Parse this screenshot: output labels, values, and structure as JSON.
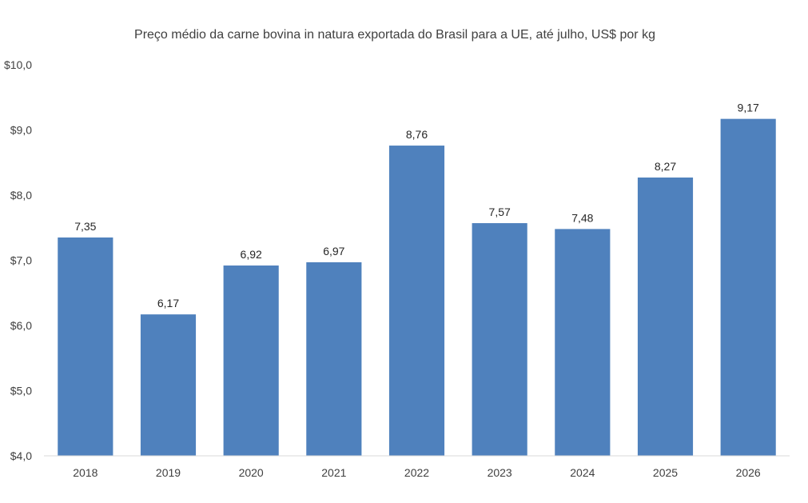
{
  "chart_data": {
    "type": "bar",
    "title": "Preço médio da carne bovina in natura exportada do Brasil para a UE, até julho, US$ por kg",
    "xlabel": "",
    "ylabel": "",
    "categories": [
      "2018",
      "2019",
      "2020",
      "2021",
      "2022",
      "2023",
      "2024",
      "2025",
      "2026"
    ],
    "values": [
      7.35,
      6.17,
      6.92,
      6.97,
      8.76,
      7.57,
      7.48,
      8.27,
      9.17
    ],
    "data_labels": [
      "7,35",
      "6,17",
      "6,92",
      "6,97",
      "8,76",
      "7,57",
      "7,48",
      "8,27",
      "9,17"
    ],
    "ylim": [
      4.0,
      10.0
    ],
    "yticks": [
      4.0,
      5.0,
      6.0,
      7.0,
      8.0,
      9.0,
      10.0
    ],
    "ytick_labels": [
      "$4,0",
      "$5,0",
      "$6,0",
      "$7,0",
      "$8,0",
      "$9,0",
      "$10,0"
    ],
    "grid": false,
    "legend": "none",
    "bar_color": "#4F81BD",
    "axis_color": "#D9D9D9"
  }
}
